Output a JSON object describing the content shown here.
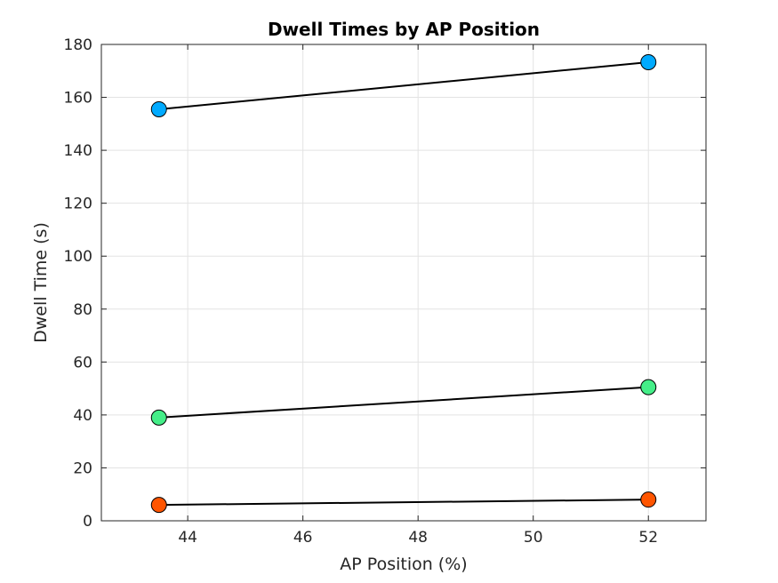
{
  "chart_data": {
    "type": "line",
    "title": "Dwell Times by AP Position",
    "xlabel": "AP Position (%)",
    "ylabel": "Dwell Time (s)",
    "xlim": [
      42.5,
      53
    ],
    "ylim": [
      0,
      180
    ],
    "xticks": [
      44,
      46,
      48,
      50,
      52
    ],
    "yticks": [
      0,
      20,
      40,
      60,
      80,
      100,
      120,
      140,
      160,
      180
    ],
    "grid": true,
    "legend": "none",
    "series": [
      {
        "color": "#00aaff",
        "x": [
          43.5,
          52
        ],
        "y": [
          155.5,
          173.3
        ]
      },
      {
        "color": "#44ee88",
        "x": [
          43.5,
          52
        ],
        "y": [
          39,
          50.5
        ]
      },
      {
        "color": "#ff5500",
        "x": [
          43.5,
          52
        ],
        "y": [
          6,
          8
        ]
      }
    ]
  }
}
